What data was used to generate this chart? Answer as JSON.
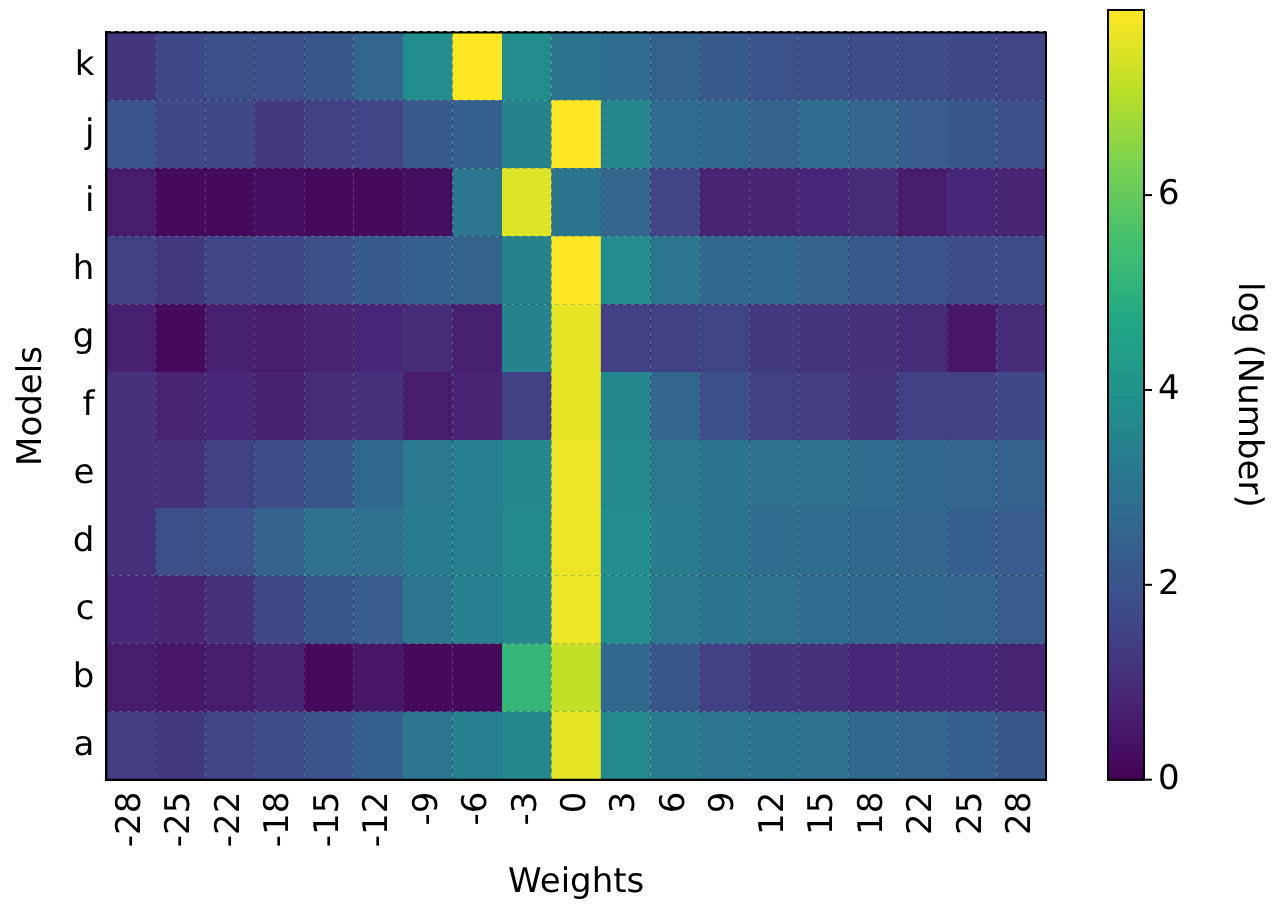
{
  "chart_data": {
    "type": "heatmap",
    "xlabel": "Weights",
    "ylabel": "Models",
    "clabel": "log (Number)",
    "categories": [
      "-28",
      "-25",
      "-22",
      "-18",
      "-15",
      "-12",
      "-9",
      "-6",
      "-3",
      "0",
      "3",
      "6",
      "9",
      "12",
      "15",
      "18",
      "22",
      "25",
      "28"
    ],
    "y_categories": [
      "k",
      "j",
      "i",
      "h",
      "g",
      "f",
      "e",
      "d",
      "c",
      "b",
      "a"
    ],
    "cells": [
      [
        1.2,
        1.7,
        1.9,
        1.9,
        2.1,
        2.6,
        3.8,
        7.9,
        3.8,
        3.0,
        2.8,
        2.5,
        2.2,
        2.0,
        1.9,
        1.8,
        1.8,
        1.7,
        1.6
      ],
      [
        2.0,
        1.7,
        1.7,
        1.3,
        1.5,
        1.6,
        2.2,
        2.4,
        3.5,
        7.9,
        3.6,
        2.8,
        2.7,
        2.5,
        2.8,
        2.6,
        2.3,
        2.1,
        1.9
      ],
      [
        0.6,
        0.2,
        0.2,
        0.3,
        0.2,
        0.2,
        0.3,
        3.1,
        7.5,
        3.0,
        2.6,
        1.6,
        0.8,
        0.8,
        0.9,
        1.0,
        0.6,
        0.9,
        0.8
      ],
      [
        1.5,
        1.3,
        1.6,
        1.7,
        1.9,
        2.2,
        2.4,
        2.5,
        3.5,
        7.9,
        3.8,
        3.1,
        2.7,
        2.7,
        2.5,
        2.2,
        2.0,
        1.8,
        1.8
      ],
      [
        0.7,
        0.2,
        0.7,
        0.6,
        0.8,
        0.9,
        1.0,
        0.7,
        3.5,
        7.6,
        1.5,
        1.5,
        1.6,
        1.3,
        1.2,
        1.1,
        1.0,
        0.5,
        1.0
      ],
      [
        1.1,
        0.8,
        0.9,
        0.7,
        1.0,
        1.1,
        0.6,
        0.8,
        1.5,
        7.6,
        3.6,
        2.6,
        1.9,
        1.5,
        1.4,
        1.2,
        1.5,
        1.5,
        1.7
      ],
      [
        1.1,
        1.1,
        1.5,
        1.8,
        2.1,
        2.7,
        3.2,
        3.4,
        3.6,
        7.7,
        3.7,
        3.2,
        3.0,
        2.9,
        2.9,
        2.8,
        2.7,
        2.6,
        2.5
      ],
      [
        1.1,
        1.9,
        2.0,
        2.5,
        2.9,
        2.9,
        3.3,
        3.4,
        3.7,
        7.7,
        3.8,
        3.3,
        3.0,
        2.8,
        2.8,
        2.7,
        2.6,
        2.4,
        2.3
      ],
      [
        0.9,
        0.8,
        1.1,
        1.7,
        2.1,
        2.3,
        3.1,
        3.4,
        3.6,
        7.7,
        3.8,
        3.2,
        3.0,
        2.9,
        2.8,
        2.7,
        2.7,
        2.6,
        2.3
      ],
      [
        0.6,
        0.5,
        0.6,
        0.8,
        0.2,
        0.5,
        0.2,
        0.2,
        5.2,
        7.2,
        2.7,
        2.1,
        1.5,
        1.2,
        1.1,
        0.9,
        0.9,
        0.9,
        0.8
      ],
      [
        1.4,
        1.3,
        1.6,
        1.8,
        2.0,
        2.4,
        3.1,
        3.4,
        3.6,
        7.6,
        3.7,
        3.3,
        3.1,
        3.0,
        2.9,
        2.7,
        2.6,
        2.4,
        2.1
      ]
    ],
    "clim": [
      0,
      7.9
    ],
    "cticks": [
      0,
      2,
      4,
      6
    ],
    "grid": true
  }
}
